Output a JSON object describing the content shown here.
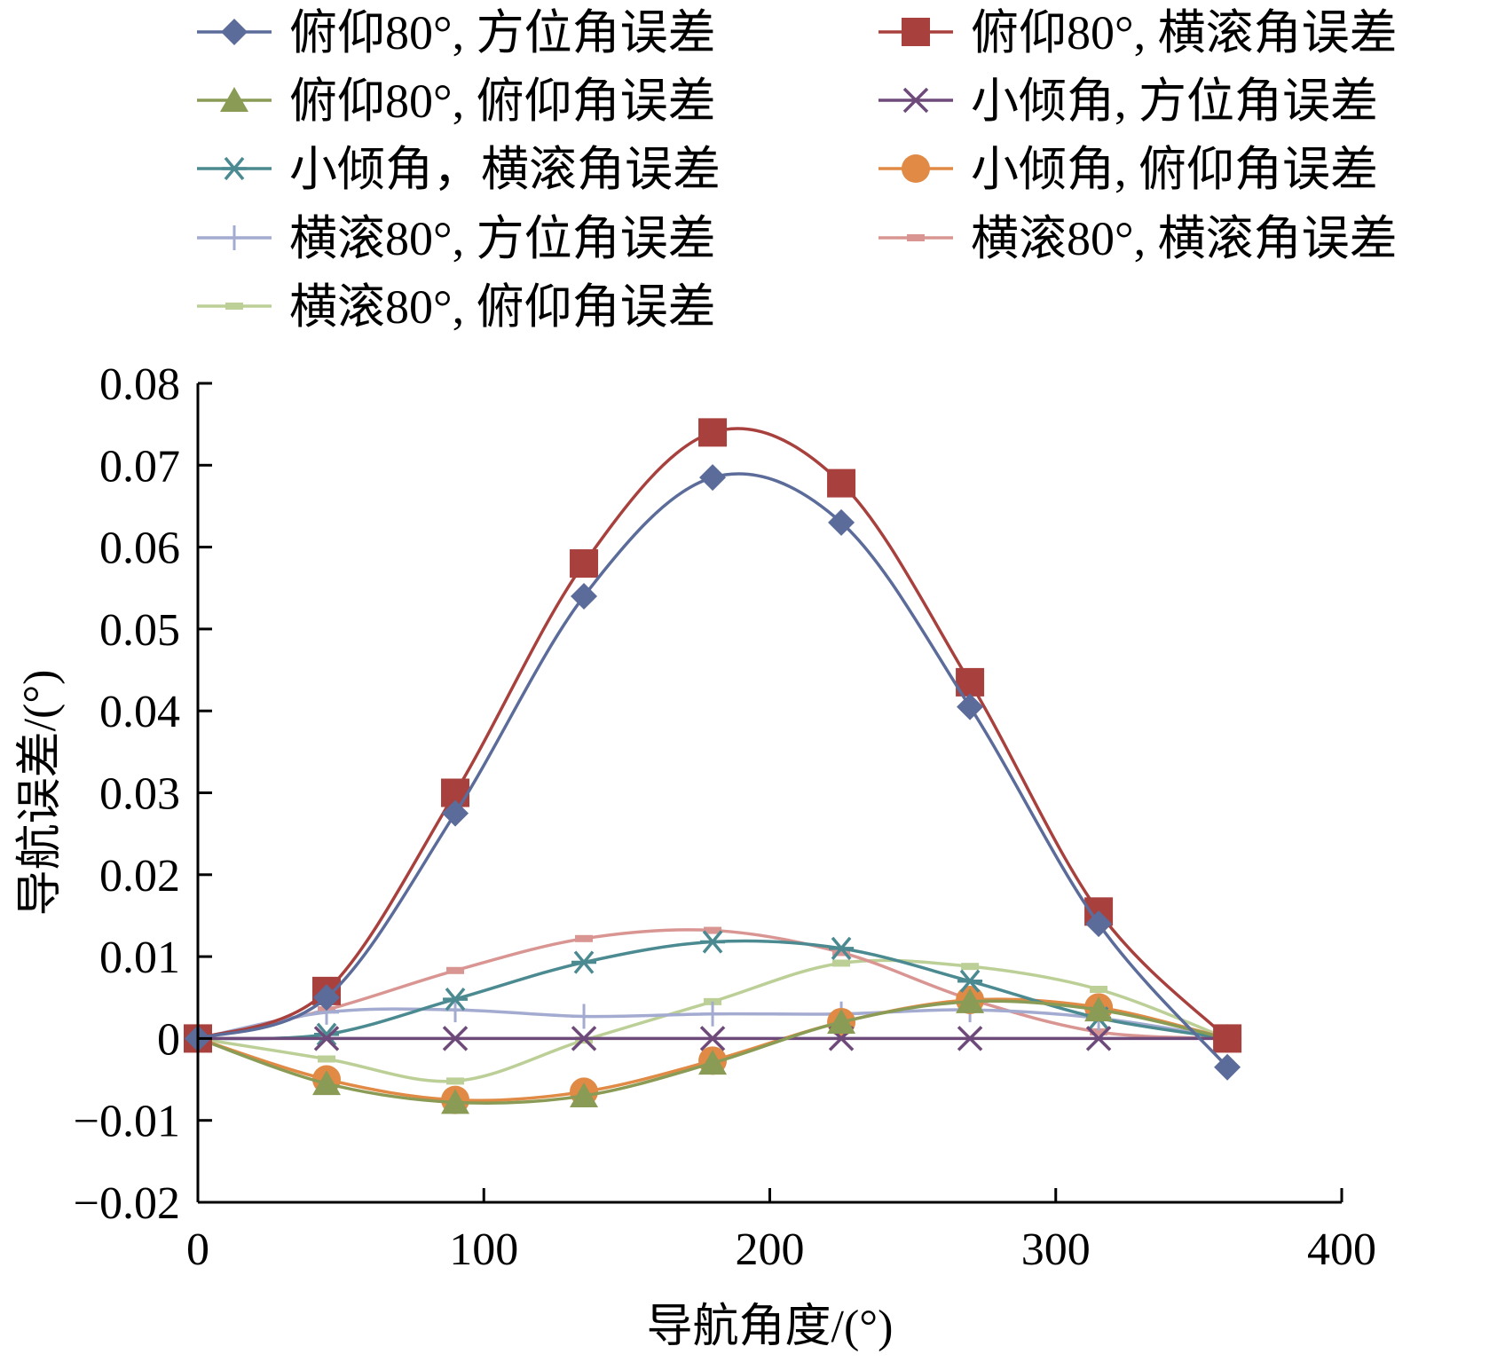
{
  "chart_data": {
    "type": "line",
    "title": "",
    "xlabel": "导航角度/(°)",
    "ylabel": "导航误差/(°)",
    "xlim": [
      0,
      400
    ],
    "ylim": [
      -0.02,
      0.08
    ],
    "xticks": [
      0,
      100,
      200,
      300,
      400
    ],
    "xtick_labels": [
      "0",
      "100",
      "200",
      "300",
      "400"
    ],
    "yticks": [
      -0.02,
      -0.01,
      0,
      0.01,
      0.02,
      0.03,
      0.04,
      0.05,
      0.06,
      0.07,
      0.08
    ],
    "ytick_labels": [
      "−0.02",
      "−0.01",
      "0",
      "0.01",
      "0.02",
      "0.03",
      "0.04",
      "0.05",
      "0.06",
      "0.07",
      "0.08"
    ],
    "grid": false,
    "legend_position": "top",
    "x": [
      0,
      45,
      90,
      135,
      180,
      225,
      270,
      315,
      360
    ],
    "series": [
      {
        "name": "俯仰80°, 方位角误差",
        "color": "#5b6b9a",
        "marker": "diamond",
        "values": [
          0,
          0.005,
          0.0275,
          0.054,
          0.0685,
          0.063,
          0.0405,
          0.014,
          -0.0035
        ]
      },
      {
        "name": "俯仰80°, 横滚角误差",
        "color": "#a8403d",
        "marker": "square",
        "values": [
          0,
          0.0058,
          0.03,
          0.058,
          0.074,
          0.0678,
          0.0435,
          0.0155,
          0
        ]
      },
      {
        "name": "俯仰80°, 俯仰角误差",
        "color": "#8a9b55",
        "marker": "triangle",
        "values": [
          0,
          -0.0055,
          -0.0078,
          -0.007,
          -0.003,
          0.002,
          0.0045,
          0.0035,
          0
        ]
      },
      {
        "name": "小倾角, 方位角误差",
        "color": "#6e4a7a",
        "marker": "x",
        "values": [
          0,
          0,
          0,
          0,
          0,
          0,
          0,
          0,
          0
        ]
      },
      {
        "name": "小倾角，横滚角误差",
        "color": "#4b8a91",
        "marker": "asterisk",
        "values": [
          0,
          0.0005,
          0.0048,
          0.0093,
          0.0118,
          0.011,
          0.007,
          0.0025,
          0
        ]
      },
      {
        "name": "小倾角, 俯仰角误差",
        "color": "#e08a45",
        "marker": "circle",
        "values": [
          0,
          -0.005,
          -0.0075,
          -0.0065,
          -0.0027,
          0.002,
          0.0047,
          0.0038,
          0
        ]
      },
      {
        "name": "横滚80°, 方位角误差",
        "color": "#a3abd0",
        "marker": "plus",
        "values": [
          0,
          0.0032,
          0.0035,
          0.0027,
          0.003,
          0.003,
          0.0035,
          0.0025,
          0
        ]
      },
      {
        "name": "横滚80°, 横滚角误差",
        "color": "#d99592",
        "marker": "dash",
        "values": [
          0,
          0.0035,
          0.0083,
          0.0122,
          0.0132,
          0.0105,
          0.0048,
          0.0008,
          0
        ]
      },
      {
        "name": "横滚80°, 俯仰角误差",
        "color": "#bccf96",
        "marker": "dash",
        "values": [
          0,
          -0.0025,
          -0.0052,
          -0.0002,
          0.0045,
          0.0092,
          0.0088,
          0.006,
          0
        ]
      }
    ]
  }
}
